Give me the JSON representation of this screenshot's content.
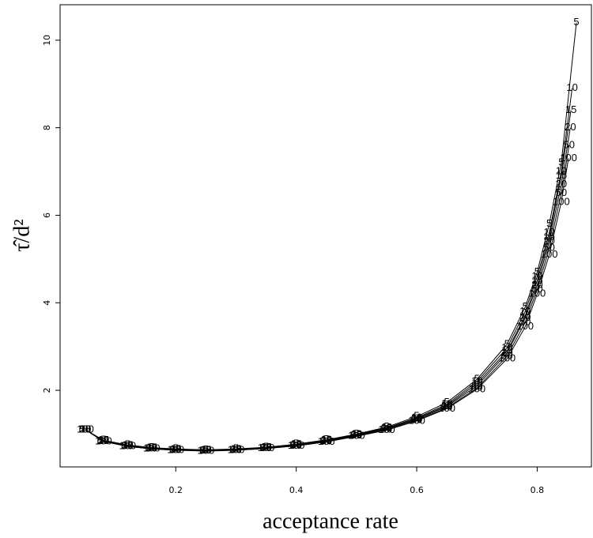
{
  "chart_data": {
    "type": "line",
    "x_label": "acceptance rate",
    "y_label": "τ̂/d²",
    "xlim": [
      0.008,
      0.89
    ],
    "ylim": [
      0.25,
      10.81
    ],
    "xticks": [
      0.2,
      0.4,
      0.6,
      0.8
    ],
    "yticks": [
      2,
      4,
      6,
      8,
      10
    ],
    "series": [
      {
        "name": "5",
        "color": "#000000",
        "x": [
          0.05,
          0.08,
          0.12,
          0.16,
          0.2,
          0.25,
          0.3,
          0.35,
          0.4,
          0.45,
          0.5,
          0.55,
          0.6,
          0.65,
          0.7,
          0.75,
          0.78,
          0.8,
          0.82,
          0.84,
          0.865
        ],
        "values": [
          1.1,
          0.86,
          0.75,
          0.69,
          0.66,
          0.64,
          0.66,
          0.7,
          0.77,
          0.87,
          1.0,
          1.16,
          1.4,
          1.72,
          2.25,
          3.05,
          3.9,
          4.7,
          5.8,
          7.2,
          10.4
        ]
      },
      {
        "name": "10",
        "color": "#000000",
        "x": [
          0.05,
          0.08,
          0.12,
          0.16,
          0.2,
          0.25,
          0.3,
          0.35,
          0.4,
          0.45,
          0.5,
          0.55,
          0.6,
          0.65,
          0.7,
          0.75,
          0.78,
          0.8,
          0.82,
          0.84,
          0.858
        ],
        "values": [
          1.1,
          0.85,
          0.74,
          0.68,
          0.65,
          0.63,
          0.65,
          0.69,
          0.76,
          0.86,
          0.99,
          1.14,
          1.37,
          1.68,
          2.2,
          2.97,
          3.8,
          4.6,
          5.6,
          7.0,
          8.9
        ]
      },
      {
        "name": "15",
        "color": "#000000",
        "x": [
          0.05,
          0.08,
          0.12,
          0.16,
          0.2,
          0.25,
          0.3,
          0.35,
          0.4,
          0.45,
          0.5,
          0.55,
          0.6,
          0.65,
          0.7,
          0.75,
          0.78,
          0.8,
          0.82,
          0.84,
          0.856
        ],
        "values": [
          1.1,
          0.85,
          0.74,
          0.68,
          0.65,
          0.63,
          0.65,
          0.69,
          0.75,
          0.85,
          0.98,
          1.13,
          1.35,
          1.65,
          2.15,
          2.9,
          3.7,
          4.5,
          5.5,
          6.9,
          8.4
        ]
      },
      {
        "name": "20",
        "color": "#000000",
        "x": [
          0.05,
          0.08,
          0.12,
          0.16,
          0.2,
          0.25,
          0.3,
          0.35,
          0.4,
          0.45,
          0.5,
          0.55,
          0.6,
          0.65,
          0.7,
          0.75,
          0.78,
          0.8,
          0.82,
          0.84,
          0.855
        ],
        "values": [
          1.1,
          0.84,
          0.73,
          0.67,
          0.64,
          0.62,
          0.64,
          0.68,
          0.74,
          0.84,
          0.97,
          1.12,
          1.33,
          1.63,
          2.1,
          2.85,
          3.65,
          4.4,
          5.4,
          6.7,
          8.0
        ]
      },
      {
        "name": "50",
        "color": "#000000",
        "x": [
          0.05,
          0.08,
          0.12,
          0.16,
          0.2,
          0.25,
          0.3,
          0.35,
          0.4,
          0.45,
          0.5,
          0.55,
          0.6,
          0.65,
          0.7,
          0.75,
          0.78,
          0.8,
          0.82,
          0.84,
          0.853
        ],
        "values": [
          1.1,
          0.84,
          0.72,
          0.66,
          0.63,
          0.62,
          0.63,
          0.67,
          0.73,
          0.83,
          0.96,
          1.1,
          1.31,
          1.6,
          2.05,
          2.78,
          3.55,
          4.3,
          5.25,
          6.5,
          7.6
        ]
      },
      {
        "name": "100",
        "color": "#000000",
        "x": [
          0.05,
          0.08,
          0.12,
          0.16,
          0.2,
          0.25,
          0.3,
          0.35,
          0.4,
          0.45,
          0.5,
          0.55,
          0.6,
          0.65,
          0.7,
          0.75,
          0.78,
          0.8,
          0.82,
          0.84,
          0.852
        ],
        "values": [
          1.1,
          0.83,
          0.72,
          0.66,
          0.63,
          0.61,
          0.63,
          0.67,
          0.73,
          0.82,
          0.95,
          1.09,
          1.3,
          1.58,
          2.02,
          2.72,
          3.45,
          4.2,
          5.1,
          6.3,
          7.3
        ]
      }
    ]
  }
}
